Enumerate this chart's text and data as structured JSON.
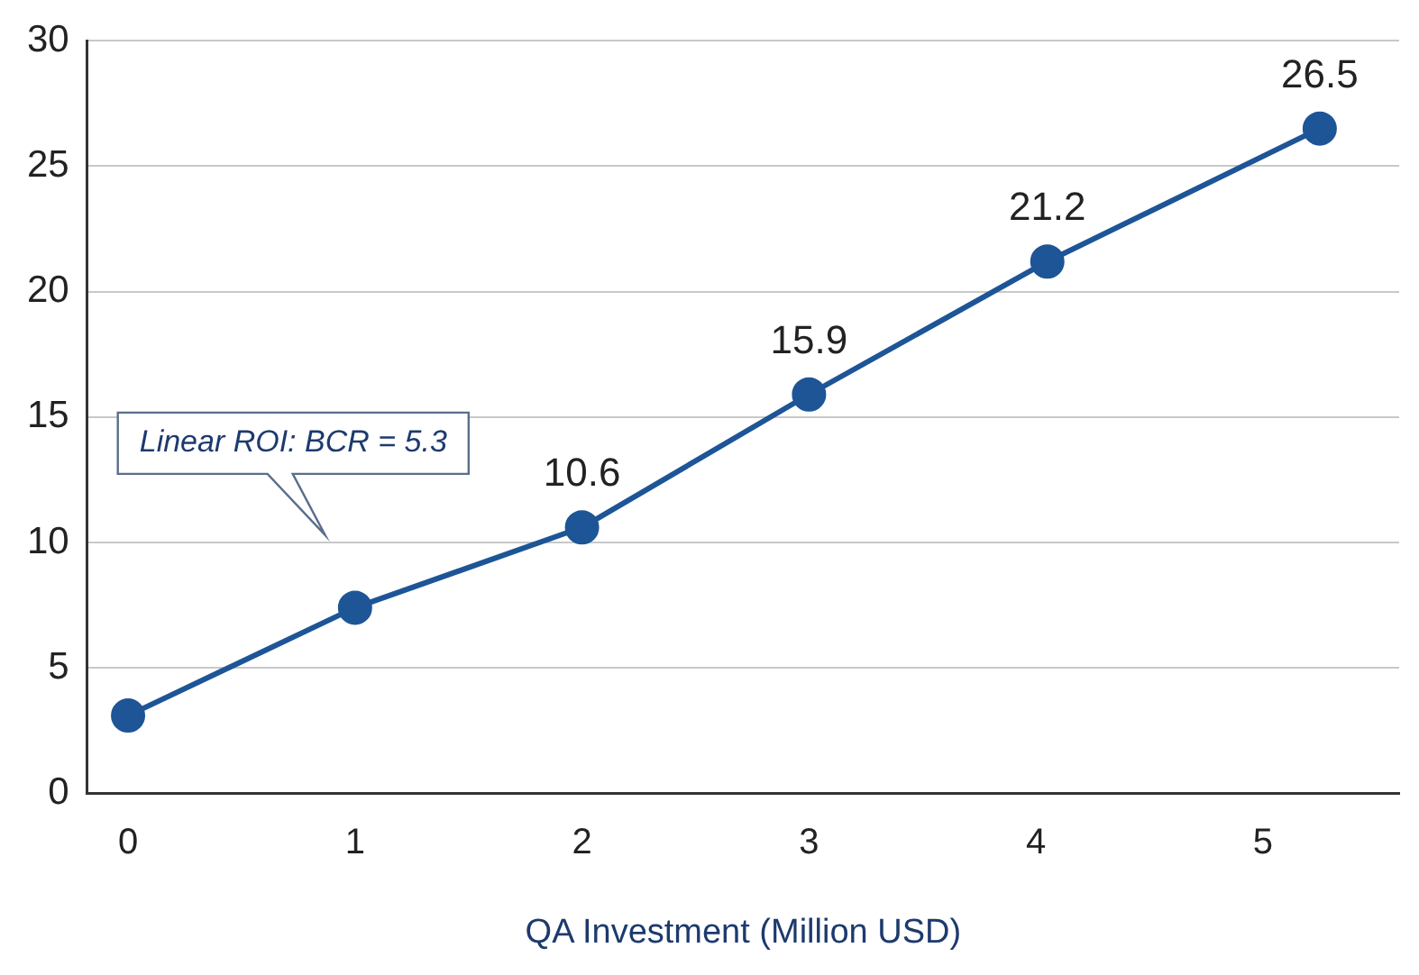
{
  "chart_data": {
    "type": "line",
    "xlabel": "QA Investment (Million USD)",
    "x": [
      0,
      1,
      2,
      3,
      4.05,
      5.25
    ],
    "series": [
      {
        "color": "#1d5596",
        "values": [
          3.1,
          7.4,
          10.6,
          15.9,
          21.2,
          26.5
        ],
        "value_labels": [
          null,
          null,
          "10.6",
          "15.9",
          "21.2",
          "26.5"
        ]
      }
    ],
    "xlim": [
      -0.18,
      5.6
    ],
    "xticks": [
      0,
      1,
      2,
      3,
      4,
      5
    ],
    "ylim": [
      0,
      30
    ],
    "yticks": [
      0,
      5,
      10,
      15,
      20,
      25,
      30
    ],
    "grid": "y",
    "marker": "circle",
    "line_style": "solid",
    "legend": false,
    "annotations": [
      "Linear ROI: BCR = 5.3"
    ]
  }
}
